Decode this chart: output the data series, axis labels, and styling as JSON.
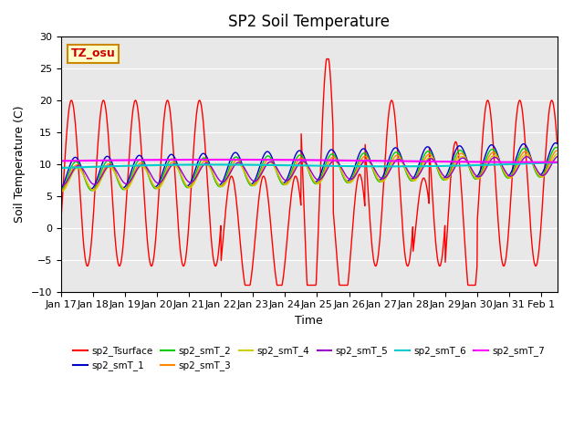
{
  "title": "SP2 Soil Temperature",
  "xlabel": "Time",
  "ylabel": "Soil Temperature (C)",
  "ylim": [
    -10,
    30
  ],
  "xlim": [
    0,
    15.5
  ],
  "x_tick_labels": [
    "Jan 17",
    "Jan 18",
    "Jan 19",
    "Jan 20",
    "Jan 21",
    "Jan 22",
    "Jan 23",
    "Jan 24",
    "Jan 25",
    "Jan 26",
    "Jan 27",
    "Jan 28",
    "Jan 29",
    "Jan 30",
    "Jan 31",
    "Feb 1"
  ],
  "bg_color": "#e8e8e8",
  "legend_items": [
    {
      "label": "sp2_Tsurface",
      "color": "#ff0000"
    },
    {
      "label": "sp2_smT_1",
      "color": "#0000cc"
    },
    {
      "label": "sp2_smT_2",
      "color": "#00cc00"
    },
    {
      "label": "sp2_smT_3",
      "color": "#ff8800"
    },
    {
      "label": "sp2_smT_4",
      "color": "#cccc00"
    },
    {
      "label": "sp2_smT_5",
      "color": "#9900cc"
    },
    {
      "label": "sp2_smT_6",
      "color": "#00cccc"
    },
    {
      "label": "sp2_smT_7",
      "color": "#ff00ff"
    }
  ],
  "tz_box_text": "TZ_osu",
  "tz_box_facecolor": "#ffffcc",
  "tz_box_edgecolor": "#cc8800",
  "tz_box_textcolor": "#cc0000"
}
